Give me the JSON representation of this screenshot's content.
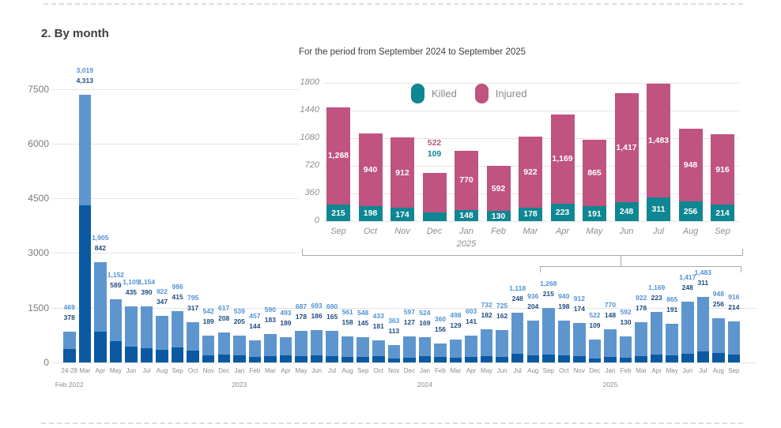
{
  "page": {
    "title": "2. By month"
  },
  "colors": {
    "main_killed_bar": "#0B59A2",
    "main_injured_bar": "#5D96CF",
    "main_killed_label": "#1C4B80",
    "main_injured_label": "#4F92D4",
    "inset_killed_teal": "#0E8793",
    "inset_injured_pink": "#C05380",
    "grid": "#E4E4E4",
    "axis_text": "#7C7C7C",
    "bracket": "#A9A9A9"
  },
  "chart_data": [
    {
      "name": "monthly-casualties-main",
      "type": "bar",
      "stacked": true,
      "ylim": [
        0,
        7500
      ],
      "yticks": [
        0,
        1500,
        3000,
        4500,
        6000,
        7500
      ],
      "grid": "on",
      "categories": [
        "24-28",
        "Mar",
        "Apr",
        "May",
        "Jun",
        "Jul",
        "Aug",
        "Sep",
        "Oct",
        "Nov",
        "Dec",
        "Jan",
        "Feb",
        "Mar",
        "Apr",
        "May",
        "Jun",
        "Jul",
        "Aug",
        "Sep",
        "Oct",
        "Nov",
        "Dec",
        "Jan",
        "Feb",
        "Mar",
        "Apr",
        "May",
        "Jun",
        "Jul",
        "Aug",
        "Sep",
        "Oct",
        "Nov",
        "Dec",
        "Jan",
        "Feb",
        "Mar",
        "Apr",
        "May",
        "Jun",
        "Jul",
        "Aug",
        "Sep"
      ],
      "year_labels": [
        {
          "index": 0,
          "label": "Feb 2022"
        },
        {
          "index": 11,
          "label": "2023"
        },
        {
          "index": 23,
          "label": "2024"
        },
        {
          "index": 35,
          "label": "2025"
        }
      ],
      "series": [
        {
          "name": "Killed",
          "values": [
            378,
            4313,
            842,
            589,
            435,
            390,
            347,
            415,
            317,
            189,
            208,
            205,
            144,
            183,
            189,
            178,
            186,
            165,
            158,
            145,
            181,
            113,
            127,
            169,
            156,
            129,
            141,
            182,
            162,
            248,
            204,
            215,
            198,
            174,
            109,
            148,
            130,
            178,
            223,
            191,
            248,
            311,
            256,
            214
          ]
        },
        {
          "name": "Injured",
          "values": [
            469,
            3019,
            1905,
            1152,
            1109,
            1154,
            922,
            986,
            795,
            542,
            617,
            539,
            457,
            590,
            493,
            687,
            693,
            690,
            561,
            548,
            433,
            363,
            597,
            524,
            360,
            498,
            603,
            732,
            725,
            1118,
            936,
            1268,
            940,
            912,
            522,
            770,
            592,
            922,
            1169,
            865,
            1417,
            1483,
            948,
            916
          ]
        }
      ]
    },
    {
      "name": "inset-sep2024-sep2025",
      "type": "bar",
      "stacked": true,
      "subtitle": "For the period from September 2024 to September 2025",
      "ylim": [
        0,
        1800
      ],
      "yticks": [
        0,
        360,
        720,
        1080,
        1440,
        1800
      ],
      "grid": "on",
      "legend_position": "top-inside",
      "categories": [
        "Sep",
        "Oct",
        "Nov",
        "Dec",
        "Jan",
        "Feb",
        "Mar",
        "Apr",
        "May",
        "Jun",
        "Jul",
        "Aug",
        "Sep"
      ],
      "sub_year_label": {
        "index": 4,
        "label": "2025"
      },
      "series": [
        {
          "name": "Killed",
          "values": [
            215,
            198,
            174,
            109,
            148,
            130,
            178,
            223,
            191,
            248,
            311,
            256,
            214
          ]
        },
        {
          "name": "Injured",
          "values": [
            1268,
            940,
            912,
            522,
            770,
            592,
            922,
            1169,
            865,
            1417,
            1483,
            948,
            916
          ]
        }
      ]
    }
  ]
}
